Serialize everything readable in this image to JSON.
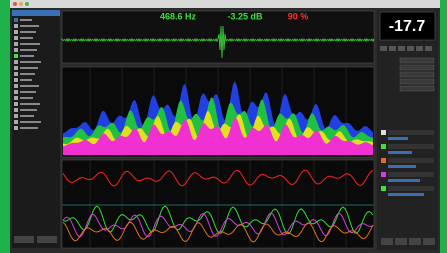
{
  "header": {
    "frequency": "468.6 Hz",
    "level": "-3.25 dB",
    "percent": "90 %"
  },
  "meter": {
    "value": "-17.7"
  }
}
